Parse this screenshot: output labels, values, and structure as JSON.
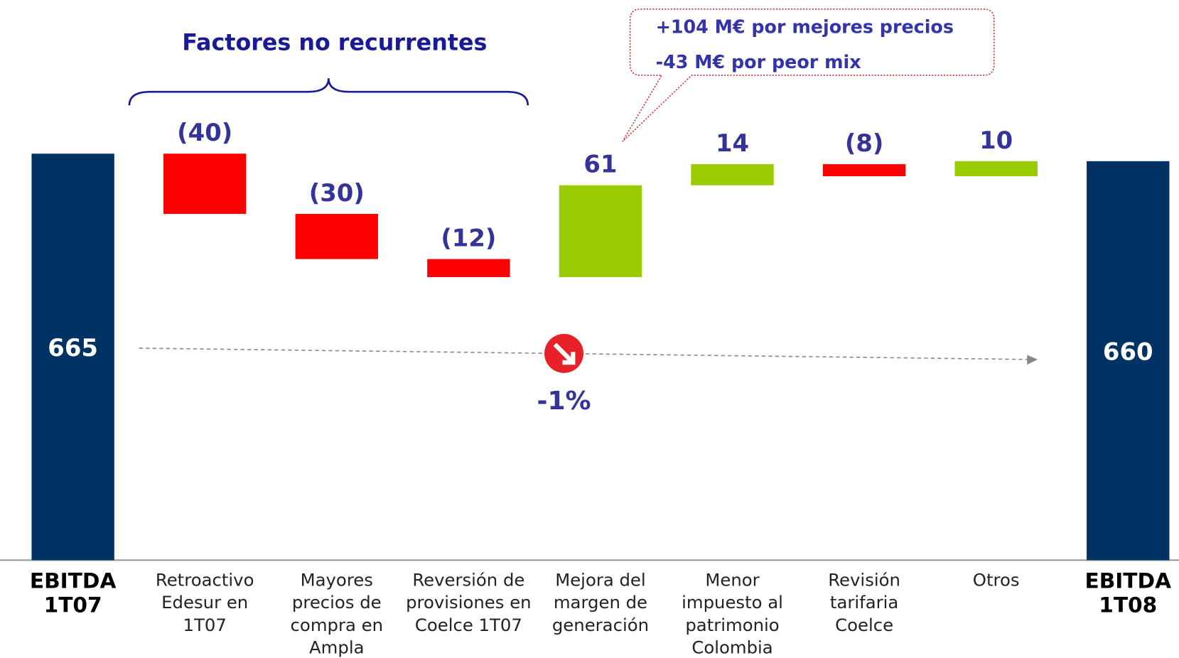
{
  "chart_data": {
    "type": "waterfall",
    "categories": [
      "EBITDA 1T07",
      "Retroactivo Edesur en 1T07",
      "Mayores precios de compra en Ampla",
      "Reversión de provisiones en Coelce 1T07",
      "Mejora del margen de generación",
      "Menor impuesto al patrimonio Colombia",
      "Revisión tarifaria Coelce",
      "Otros",
      "EBITDA 1T08"
    ],
    "values": [
      665,
      -40,
      -30,
      -12,
      61,
      14,
      -8,
      10,
      660
    ],
    "value_labels": [
      "665",
      "(40)",
      "(30)",
      "(12)",
      "61",
      "14",
      "(8)",
      "10",
      "660"
    ],
    "is_total": [
      true,
      false,
      false,
      false,
      false,
      false,
      false,
      false,
      true
    ],
    "colors": {
      "total": "#003263",
      "increase": "#99cc00",
      "decrease": "#ff0000"
    },
    "ylim": [
      395,
      767
    ],
    "bracket_label": "Factores no recurrentes",
    "callout": [
      "+104 M€ por mejores precios",
      "-43 M€ por peor mix"
    ],
    "change_label": "-1%"
  }
}
